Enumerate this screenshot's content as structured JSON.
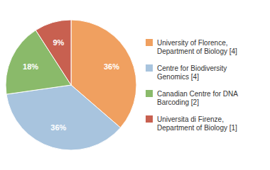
{
  "chart_data": {
    "type": "pie",
    "categories": [
      "University of Florence,\nDepartment of Biology [4]",
      "Centre for Biodiversity\nGenomics [4]",
      "Canadian Centre for DNA\nBarcoding [2]",
      "Universita di Firenze,\nDepartment of Biology [1]"
    ],
    "values": [
      36,
      36,
      18,
      9
    ],
    "value_labels": [
      "36%",
      "36%",
      "18%",
      "9%"
    ],
    "colors": [
      "#f0a060",
      "#a8c4de",
      "#8aba6a",
      "#c86050"
    ],
    "data_labels": true,
    "legend": "right"
  }
}
